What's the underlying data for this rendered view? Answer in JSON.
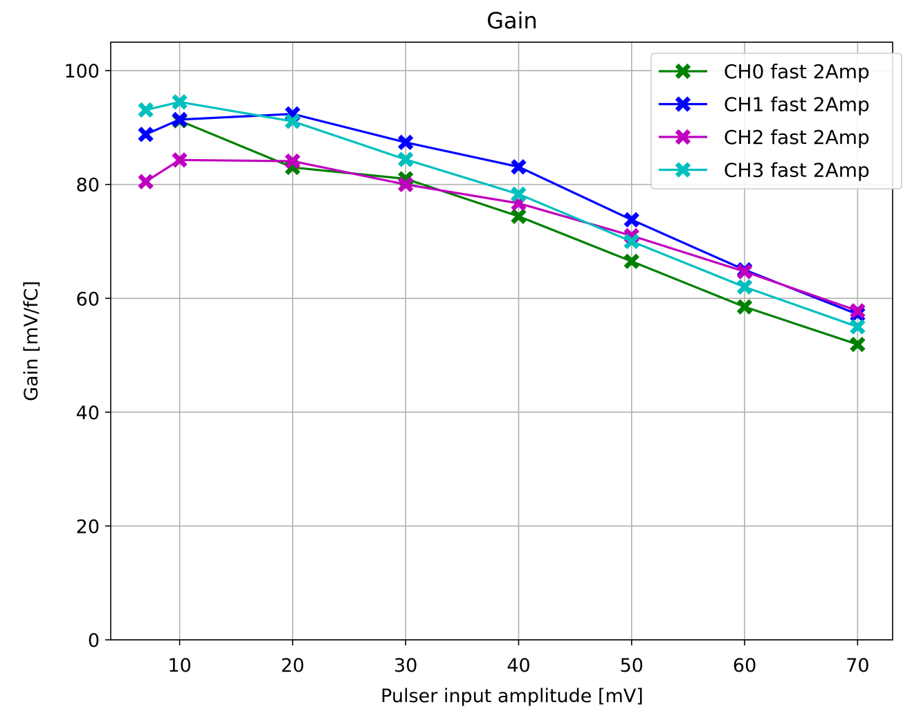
{
  "chart_data": {
    "type": "line",
    "title": "Gain",
    "xlabel": "Pulser input amplitude [mV]",
    "ylabel": "Gain [mV/fC]",
    "xlim": [
      3.9,
      73.1
    ],
    "ylim": [
      0,
      105
    ],
    "xticks": [
      10,
      20,
      30,
      40,
      50,
      60,
      70
    ],
    "yticks": [
      0,
      20,
      40,
      60,
      80,
      100
    ],
    "grid": true,
    "legend_position": "top-right",
    "marker": "X",
    "x": [
      7,
      10,
      20,
      30,
      40,
      50,
      60,
      70
    ],
    "series": [
      {
        "name": "CH0 fast 2Amp",
        "color": "#008000",
        "values": [
          null,
          91.2,
          83.0,
          81.0,
          74.4,
          66.5,
          58.5,
          51.9
        ]
      },
      {
        "name": "CH1 fast 2Amp",
        "color": "#0000ff",
        "values": [
          88.8,
          91.4,
          92.4,
          87.4,
          83.1,
          73.8,
          65.0,
          57.2
        ]
      },
      {
        "name": "CH2 fast 2Amp",
        "color": "#bf00bf",
        "values": [
          80.5,
          84.3,
          84.1,
          80.0,
          76.7,
          71.0,
          64.7,
          57.8
        ]
      },
      {
        "name": "CH3 fast 2Amp",
        "color": "#00bfbf",
        "values": [
          93.1,
          94.5,
          91.1,
          84.4,
          78.3,
          70.0,
          62.0,
          55.0
        ]
      }
    ]
  }
}
